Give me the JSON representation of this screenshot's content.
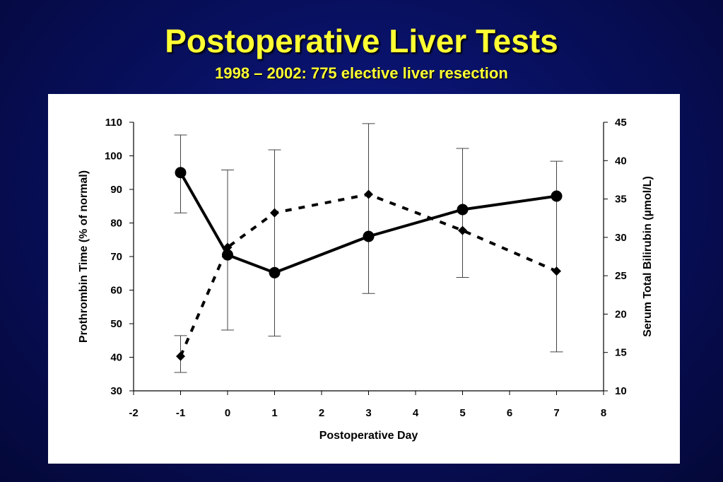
{
  "header": {
    "title": "Postoperative Liver Tests",
    "subtitle": "1998 – 2002: 775 elective liver resection"
  },
  "colors": {
    "background": "#081060",
    "title": "#ffff33",
    "panel": "#ffffff",
    "series": "#000000"
  },
  "chart_data": {
    "type": "line",
    "xlabel": "Postoperative Day",
    "ylabel": "Prothrombin Time (% of normal)",
    "y2label": "Serum Total Bilirubin (µmol/L)",
    "xlim": [
      -2,
      8
    ],
    "ylim": [
      30,
      110
    ],
    "y2lim": [
      10,
      45
    ],
    "xticks": [
      -2,
      -1,
      0,
      1,
      2,
      3,
      4,
      5,
      6,
      7,
      8
    ],
    "yticks": [
      30,
      40,
      50,
      60,
      70,
      80,
      90,
      100,
      110
    ],
    "y2ticks": [
      10,
      15,
      20,
      25,
      30,
      35,
      40,
      45
    ],
    "legend": "none",
    "grid": false,
    "series": [
      {
        "axis": "left",
        "style": "solid",
        "marker": "circle",
        "x": [
          -1,
          0,
          1,
          3,
          5,
          7
        ],
        "values": [
          95,
          70.5,
          65.2,
          76,
          84,
          88
        ],
        "error_high": [
          106.2,
          95.8,
          101.8,
          109.6,
          102.2,
          98.4
        ],
        "error_low": [
          83,
          48.1,
          46.3,
          59,
          63.8,
          41.6
        ]
      },
      {
        "axis": "right",
        "style": "dashed",
        "marker": "diamond",
        "x": [
          -1,
          0,
          1,
          3,
          5,
          7
        ],
        "values": [
          14.5,
          28.7,
          33.2,
          35.6,
          30.9,
          25.6
        ],
        "error_high": [
          17.2,
          null,
          null,
          null,
          null,
          null
        ],
        "error_low": [
          12.4,
          null,
          null,
          null,
          null,
          null
        ]
      }
    ]
  }
}
